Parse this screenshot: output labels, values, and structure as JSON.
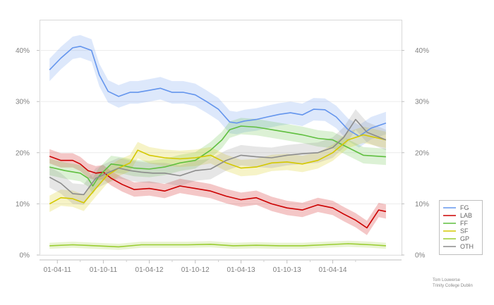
{
  "chart_data": {
    "type": "line",
    "title": "",
    "xlabel": "",
    "ylabel": "",
    "x_ticks": [
      "2011-04-01",
      "2011-10-01",
      "2012-04-01",
      "2012-10-01",
      "2013-04-01",
      "2013-10-01",
      "2014-04-01"
    ],
    "x_tick_labels": [
      "01-04-11",
      "01-10-11",
      "01-04-12",
      "01-10-12",
      "01-04-13",
      "01-10-13",
      "01-04-14"
    ],
    "xlim": [
      "2011-01-20",
      "2014-12-31"
    ],
    "ylim": [
      0,
      0.46
    ],
    "y_ticks": [
      0,
      0.1,
      0.2,
      0.3,
      0.4
    ],
    "y_tick_labels": [
      "0%",
      "10%",
      "20%",
      "30%",
      "40%"
    ],
    "grid": "horizontal",
    "legend_position": "bottom-right",
    "bands": "shaded uncertainty band around each series",
    "series": [
      {
        "name": "FG",
        "color": "#6495ED",
        "band": 0.022,
        "x": [
          "2011-03-01",
          "2011-04-15",
          "2011-06-01",
          "2011-07-01",
          "2011-08-15",
          "2011-09-15",
          "2011-10-20",
          "2011-12-01",
          "2012-01-15",
          "2012-02-15",
          "2012-04-01",
          "2012-05-15",
          "2012-07-01",
          "2012-08-15",
          "2012-10-01",
          "2012-11-15",
          "2013-01-01",
          "2013-02-15",
          "2013-03-15",
          "2013-04-15",
          "2013-06-01",
          "2013-07-15",
          "2013-09-01",
          "2013-10-15",
          "2013-12-01",
          "2014-01-15",
          "2014-03-01",
          "2014-04-15",
          "2014-06-01",
          "2014-07-15",
          "2014-09-01",
          "2014-10-30"
        ],
        "y": [
          0.362,
          0.385,
          0.405,
          0.408,
          0.4,
          0.352,
          0.32,
          0.31,
          0.318,
          0.318,
          0.322,
          0.326,
          0.318,
          0.318,
          0.313,
          0.3,
          0.285,
          0.26,
          0.258,
          0.262,
          0.265,
          0.27,
          0.275,
          0.278,
          0.274,
          0.285,
          0.284,
          0.27,
          0.245,
          0.232,
          0.248,
          0.258
        ]
      },
      {
        "name": "LAB",
        "color": "#CC0000",
        "band": 0.014,
        "x": [
          "2011-03-01",
          "2011-04-15",
          "2011-06-01",
          "2011-07-01",
          "2011-08-01",
          "2011-09-01",
          "2011-10-01",
          "2011-11-01",
          "2011-12-15",
          "2012-02-01",
          "2012-04-01",
          "2012-06-01",
          "2012-08-01",
          "2012-10-01",
          "2012-12-01",
          "2013-02-01",
          "2013-04-01",
          "2013-06-01",
          "2013-08-01",
          "2013-10-01",
          "2013-12-01",
          "2014-02-01",
          "2014-04-01",
          "2014-05-15",
          "2014-07-01",
          "2014-08-15",
          "2014-10-01",
          "2014-10-30"
        ],
        "y": [
          0.193,
          0.185,
          0.185,
          0.178,
          0.165,
          0.16,
          0.162,
          0.15,
          0.138,
          0.128,
          0.13,
          0.125,
          0.135,
          0.13,
          0.125,
          0.115,
          0.108,
          0.112,
          0.1,
          0.092,
          0.088,
          0.098,
          0.092,
          0.08,
          0.068,
          0.053,
          0.088,
          0.085
        ]
      },
      {
        "name": "FF",
        "color": "#5FBF3F",
        "band": 0.016,
        "x": [
          "2011-03-01",
          "2011-05-01",
          "2011-07-01",
          "2011-08-01",
          "2011-08-20",
          "2011-09-15",
          "2011-11-01",
          "2011-12-15",
          "2012-02-01",
          "2012-04-01",
          "2012-06-01",
          "2012-08-01",
          "2012-10-01",
          "2012-12-01",
          "2013-01-15",
          "2013-02-15",
          "2013-04-01",
          "2013-06-01",
          "2013-08-01",
          "2013-10-01",
          "2013-12-01",
          "2014-02-01",
          "2014-04-01",
          "2014-06-01",
          "2014-08-01",
          "2014-10-30"
        ],
        "y": [
          0.172,
          0.165,
          0.16,
          0.15,
          0.135,
          0.155,
          0.178,
          0.175,
          0.17,
          0.168,
          0.172,
          0.18,
          0.185,
          0.205,
          0.225,
          0.245,
          0.252,
          0.25,
          0.245,
          0.24,
          0.235,
          0.228,
          0.225,
          0.21,
          0.195,
          0.192
        ]
      },
      {
        "name": "SF",
        "color": "#D4C800",
        "band": 0.016,
        "x": [
          "2011-03-01",
          "2011-04-15",
          "2011-06-01",
          "2011-07-15",
          "2011-09-01",
          "2011-10-15",
          "2011-12-01",
          "2012-01-15",
          "2012-02-15",
          "2012-04-01",
          "2012-06-01",
          "2012-08-01",
          "2012-10-01",
          "2012-12-01",
          "2013-02-01",
          "2013-04-01",
          "2013-06-01",
          "2013-08-01",
          "2013-10-01",
          "2013-12-01",
          "2014-02-01",
          "2014-04-01",
          "2014-06-01",
          "2014-08-01",
          "2014-10-30"
        ],
        "y": [
          0.1,
          0.112,
          0.11,
          0.102,
          0.13,
          0.155,
          0.17,
          0.18,
          0.205,
          0.195,
          0.19,
          0.188,
          0.19,
          0.195,
          0.18,
          0.17,
          0.172,
          0.18,
          0.182,
          0.178,
          0.185,
          0.2,
          0.225,
          0.235,
          0.225
        ]
      },
      {
        "name": "GP",
        "color": "#9ACD32",
        "band": 0.006,
        "x": [
          "2011-03-01",
          "2011-06-01",
          "2011-09-01",
          "2011-12-01",
          "2012-03-01",
          "2012-06-01",
          "2012-09-01",
          "2012-12-01",
          "2013-03-01",
          "2013-06-01",
          "2013-09-01",
          "2013-12-01",
          "2014-03-01",
          "2014-06-01",
          "2014-09-01",
          "2014-10-30"
        ],
        "y": [
          0.018,
          0.02,
          0.018,
          0.016,
          0.02,
          0.02,
          0.02,
          0.021,
          0.018,
          0.019,
          0.018,
          0.018,
          0.02,
          0.022,
          0.02,
          0.018
        ]
      },
      {
        "name": "OTH",
        "color": "#8C8C8C",
        "band": 0.02,
        "x": [
          "2011-03-01",
          "2011-04-15",
          "2011-06-01",
          "2011-07-15",
          "2011-09-01",
          "2011-10-15",
          "2011-12-01",
          "2012-01-15",
          "2012-03-01",
          "2012-04-15",
          "2012-06-01",
          "2012-08-01",
          "2012-10-01",
          "2012-12-01",
          "2013-02-01",
          "2013-04-01",
          "2013-06-01",
          "2013-08-01",
          "2013-10-01",
          "2013-12-01",
          "2014-02-01",
          "2014-04-01",
          "2014-05-15",
          "2014-07-01",
          "2014-08-15",
          "2014-10-30"
        ],
        "y": [
          0.152,
          0.14,
          0.12,
          0.118,
          0.15,
          0.16,
          0.17,
          0.165,
          0.162,
          0.16,
          0.16,
          0.155,
          0.165,
          0.168,
          0.185,
          0.195,
          0.192,
          0.19,
          0.195,
          0.198,
          0.2,
          0.21,
          0.23,
          0.265,
          0.24,
          0.225
        ]
      }
    ]
  },
  "credit": {
    "line1": "Tom Louwerse",
    "line2": "Trinity College Dublin"
  }
}
